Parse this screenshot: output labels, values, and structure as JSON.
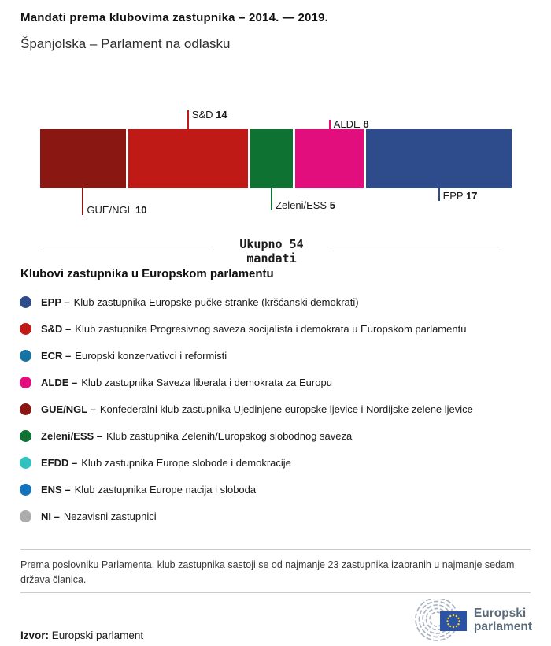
{
  "header": {
    "title": "Mandati prema klubovima zastupnika – 2014. — 2019.",
    "subtitle": "Španjolska – Parlament na odlasku"
  },
  "chart_data": {
    "type": "stacked-bar",
    "title": "Mandati prema klubovima zastupnika – 2014. — 2019.",
    "subtitle": "Španjolska – Parlament na odlasku",
    "unit": "mandati",
    "total": 54,
    "total_label_line1": "Ukupno 54",
    "total_label_line2": "mandati",
    "legend_position": "below",
    "segments": [
      {
        "name": "GUE/NGL",
        "seats": 10,
        "color": "#8B1712",
        "label_side": "below",
        "tick_len": 34
      },
      {
        "name": "S&D",
        "seats": 14,
        "color": "#C01A17",
        "label_side": "above",
        "tick_len": 24
      },
      {
        "name": "Zeleni/ESS",
        "seats": 5,
        "color": "#0E7233",
        "label_side": "below",
        "tick_len": 28
      },
      {
        "name": "ALDE",
        "seats": 8,
        "color": "#E30E7E",
        "label_side": "above",
        "tick_len": 12
      },
      {
        "name": "EPP",
        "seats": 17,
        "color": "#2E4B8C",
        "label_side": "below",
        "tick_len": 16
      }
    ]
  },
  "legend": {
    "heading": "Klubovi zastupnika u Europskom parlamentu",
    "items": [
      {
        "abbr": "EPP –",
        "desc": "Klub zastupnika Europske pučke stranke (kršćanski demokrati)",
        "color": "#2E4B8C"
      },
      {
        "abbr": "S&D –",
        "desc": "Klub zastupnika Progresivnog saveza socijalista i demokrata u Europskom parlamentu",
        "color": "#C01A17"
      },
      {
        "abbr": "ECR –",
        "desc": "Europski konzervativci i reformisti",
        "color": "#1574A4"
      },
      {
        "abbr": "ALDE –",
        "desc": "Klub zastupnika Saveza liberala i demokrata za Europu",
        "color": "#E30E7E"
      },
      {
        "abbr": "GUE/NGL –",
        "desc": "Konfederalni klub zastupnika Ujedinjene europske ljevice i Nordijske zelene ljevice",
        "color": "#8B1712"
      },
      {
        "abbr": "Zeleni/ESS –",
        "desc": "Klub zastupnika Zelenih/Europskog slobodnog saveza",
        "color": "#0E7233"
      },
      {
        "abbr": "EFDD –",
        "desc": "Klub zastupnika Europe slobode i demokracije",
        "color": "#32C1BE"
      },
      {
        "abbr": "ENS –",
        "desc": "Klub zastupnika Europe nacija i sloboda",
        "color": "#1374BE"
      },
      {
        "abbr": "NI –",
        "desc": "Nezavisni zastupnici",
        "color": "#ACACAC"
      }
    ]
  },
  "footer": {
    "note": "Prema poslovniku Parlamenta, klub zastupnika sastoji se od najmanje 23 zastupnika izabranih u najmanje sedam država članica.",
    "source_label": "Izvor:",
    "source_value": "Europski parlament",
    "logo_line1": "Europski",
    "logo_line2": "parlament"
  },
  "colors": {
    "flag_blue": "#2B53A5",
    "star_yellow": "#FFD617",
    "hemicycle_gray": "#A9B4BF",
    "rule_gray": "#CCCCCC"
  }
}
